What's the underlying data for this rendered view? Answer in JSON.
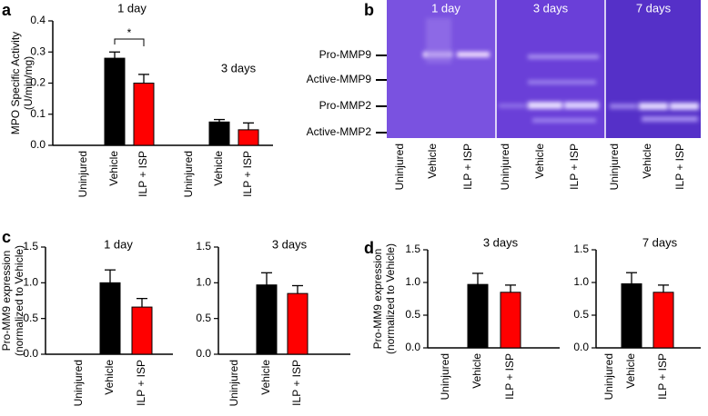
{
  "chart_data": [
    {
      "type": "bar",
      "panel": "a",
      "ylabel": [
        "MPO Specific Activity",
        "(U/min/mg)"
      ],
      "group_titles": [
        "1 day",
        "3 days"
      ],
      "categories": [
        "Uninjured",
        "Vehicle",
        "ILP + ISP",
        "Uninjured",
        "Vehicle",
        "ILP + ISP"
      ],
      "values": [
        0,
        0.28,
        0.2,
        0,
        0.075,
        0.05
      ],
      "errors": [
        null,
        0.02,
        0.028,
        null,
        0.008,
        0.022
      ],
      "colors": [
        "#000000",
        "#000000",
        "#ff0000",
        "#000000",
        "#000000",
        "#ff0000"
      ],
      "annotations": [
        "*"
      ],
      "ylim": [
        0,
        0.4
      ],
      "yticks": [
        {
          "value": 0,
          "label": "0.0"
        },
        0.1,
        0.2,
        0.3,
        0.4
      ]
    },
    {
      "type": "bar",
      "panel": "c",
      "ylabel": [
        "Pro-MM9 expression",
        "(normalized to Vehicle)"
      ],
      "title": "1 day",
      "categories": [
        "Uninjured",
        "Vehicle",
        "ILP + ISP"
      ],
      "values": [
        0,
        1.0,
        0.66
      ],
      "errors": [
        null,
        0.18,
        0.12
      ],
      "colors": [
        "#000000",
        "#000000",
        "#ff0000"
      ],
      "ylim": [
        0,
        1.5
      ],
      "yticks": [
        {
          "value": 0,
          "label": "0.0"
        },
        0.5,
        {
          "value": 1,
          "label": "1.0"
        },
        1.5
      ]
    },
    {
      "type": "bar",
      "title": "3 days",
      "categories": [
        "Uninjured",
        "Vehicle",
        "ILP + ISP"
      ],
      "values": [
        0,
        0.97,
        0.85
      ],
      "errors": [
        null,
        0.17,
        0.11
      ],
      "colors": [
        "#000000",
        "#000000",
        "#ff0000"
      ],
      "ylim": [
        0,
        1.5
      ],
      "yticks": [
        {
          "value": 0,
          "label": "0.0"
        },
        0.5,
        {
          "value": 1,
          "label": "1.0"
        },
        1.5
      ]
    },
    {
      "type": "bar",
      "panel": "d",
      "ylabel": [
        "Pro-MM9 expression",
        "(normalized to Vehicle)"
      ],
      "title": "3 days",
      "categories": [
        "Uninjured",
        "Vehicle",
        "ILP + ISP"
      ],
      "values": [
        0,
        0.97,
        0.85
      ],
      "errors": [
        null,
        0.17,
        0.11
      ],
      "colors": [
        "#000000",
        "#000000",
        "#ff0000"
      ],
      "ylim": [
        0,
        1.5
      ],
      "yticks": [
        {
          "value": 0,
          "label": "0.0"
        },
        0.5,
        {
          "value": 1,
          "label": "1.0"
        },
        1.5
      ]
    },
    {
      "type": "bar",
      "title": "7 days",
      "categories": [
        "Uninjured",
        "Vehicle",
        "ILP + ISP"
      ],
      "values": [
        0,
        0.98,
        0.85
      ],
      "errors": [
        null,
        0.17,
        0.11
      ],
      "colors": [
        "#000000",
        "#000000",
        "#ff0000"
      ],
      "ylim": [
        0,
        1.5
      ],
      "yticks": [
        {
          "value": 0,
          "label": "0.0"
        },
        0.5,
        {
          "value": 1,
          "label": "1.0"
        },
        1.5
      ]
    }
  ],
  "gel": {
    "panel": "b",
    "bands": [
      "Pro-MMP9",
      "Active-MMP9",
      "Pro-MMP2",
      "Active-MMP2"
    ],
    "panels": [
      {
        "title": "1 day",
        "lanes": [
          "Uninjured",
          "Vehicle",
          "ILP + ISP"
        ]
      },
      {
        "title": "3 days",
        "lanes": [
          "Uninjured",
          "Vehicle",
          "ILP + ISP"
        ]
      },
      {
        "title": "7 days",
        "lanes": [
          "Uninjured",
          "Vehicle",
          "ILP + ISP"
        ]
      }
    ]
  }
}
